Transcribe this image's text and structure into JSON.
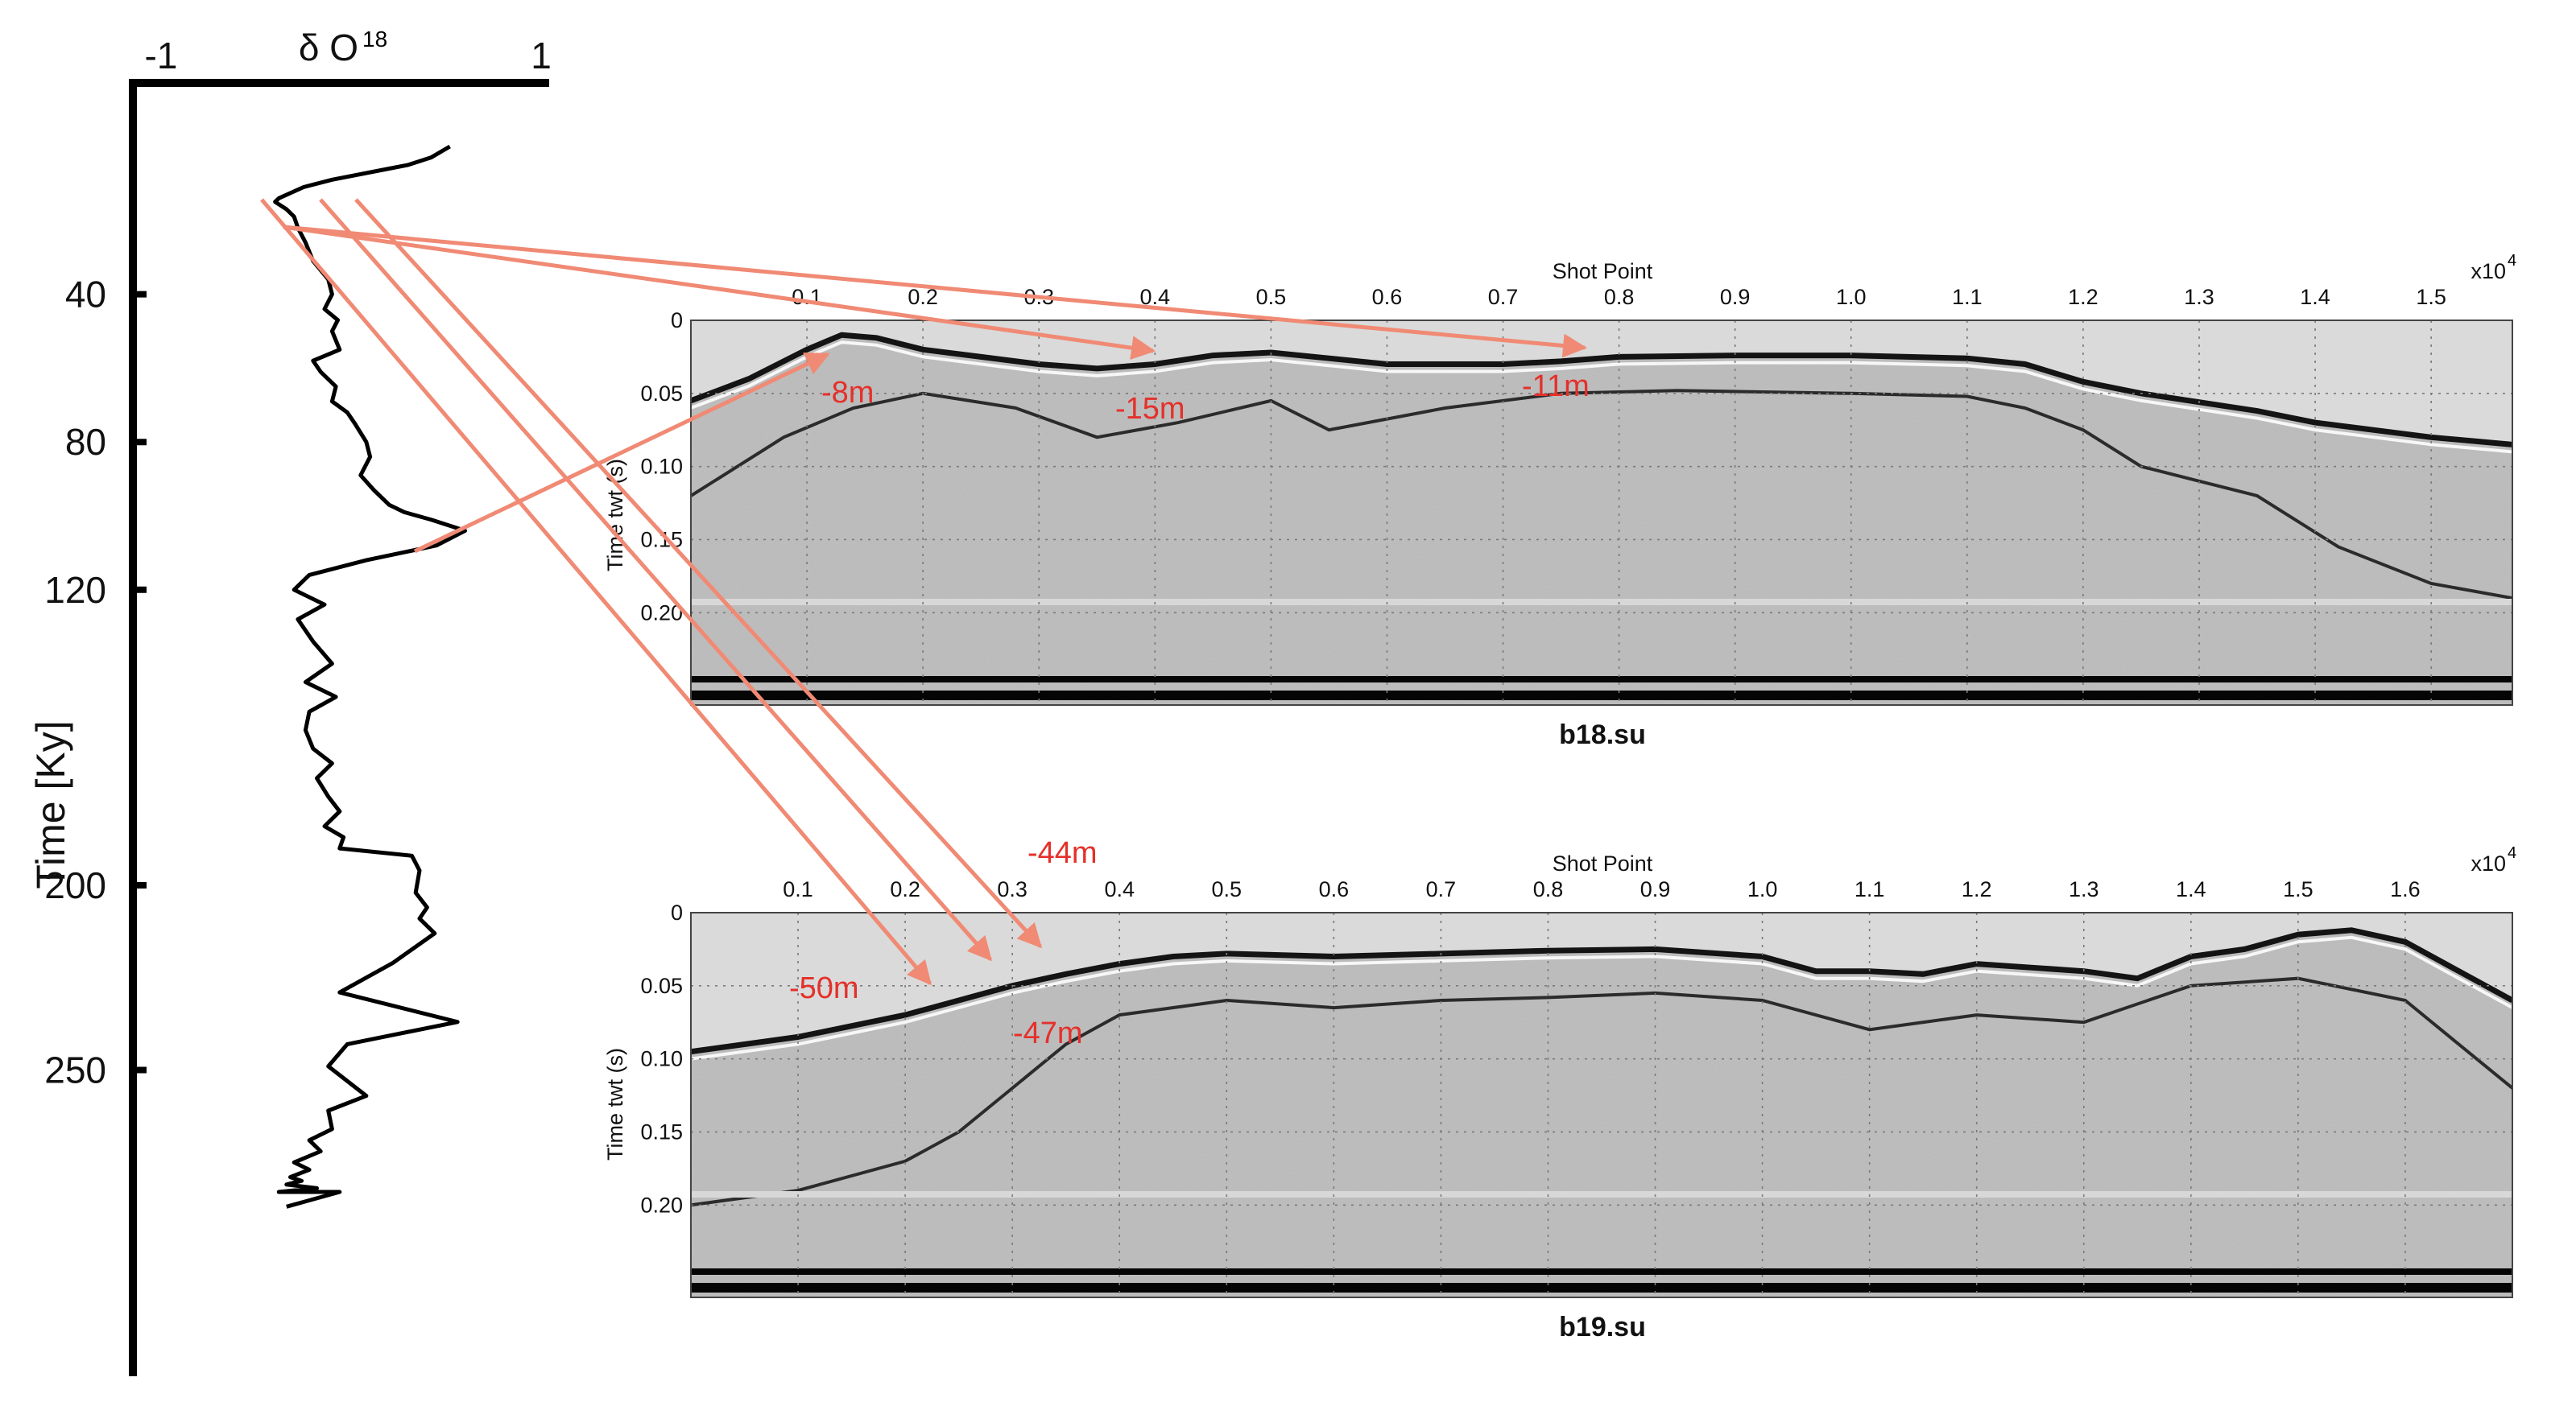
{
  "chart_data": [
    {
      "type": "line",
      "x_axis": {
        "label": "δ O",
        "label_sup": "18",
        "range": [
          -1,
          1
        ],
        "tick_labels": [
          "-1",
          "1"
        ]
      },
      "y_axis": {
        "label": "Time [Ky]",
        "range": [
          0,
          290
        ],
        "tick_values": [
          40,
          80,
          120,
          200,
          250
        ],
        "tick_labels": [
          "40",
          "80",
          "120",
          "200",
          "250"
        ],
        "inverted": true
      },
      "series": [
        {
          "color": "#000000",
          "x": [
            0.52,
            0.42,
            0.3,
            0.2,
            -0.1,
            -0.25,
            -0.38,
            -0.4,
            -0.34,
            -0.3,
            -0.28,
            -0.24,
            -0.2,
            -0.12,
            -0.1,
            -0.14,
            -0.07,
            -0.1,
            -0.06,
            -0.2,
            -0.16,
            -0.08,
            -0.1,
            -0.02,
            0.02,
            0.08,
            0.1,
            0.05,
            0.12,
            0.2,
            0.28,
            0.42,
            0.6,
            0.45,
            0.08,
            -0.22,
            -0.3,
            -0.14,
            -0.28,
            -0.2,
            -0.1,
            -0.24,
            -0.08,
            -0.22,
            -0.24,
            -0.2,
            -0.1,
            -0.18,
            -0.12,
            -0.06,
            -0.14,
            -0.04,
            -0.06,
            0.32,
            0.36,
            0.34,
            0.4,
            0.36,
            0.44,
            0.22,
            -0.06,
            0.56,
            -0.02,
            -0.12,
            0.08,
            -0.12,
            -0.1,
            -0.22,
            -0.16,
            -0.3,
            -0.22,
            -0.32,
            -0.26,
            -0.34,
            -0.18,
            -0.38,
            -0.06,
            -0.34
          ],
          "y": [
            0,
            3,
            5,
            6,
            9,
            11,
            14,
            15,
            17,
            19,
            22,
            26,
            31,
            36,
            40,
            44,
            47,
            50,
            55,
            58,
            61,
            65,
            69,
            72,
            75,
            80,
            84,
            89,
            93,
            97,
            99,
            101,
            104,
            108,
            112,
            116,
            120,
            124,
            128,
            134,
            140,
            145,
            149,
            153,
            158,
            163,
            167,
            171,
            176,
            180,
            184,
            187,
            190,
            192,
            196,
            202,
            206,
            209,
            213,
            221,
            229,
            237,
            243,
            249,
            257,
            261,
            266,
            269,
            272,
            275,
            277,
            279,
            280,
            281,
            282,
            283,
            283,
            287
          ]
        }
      ]
    },
    {
      "type": "heatmap",
      "title": "b18.su",
      "x_axis": {
        "label": "Shot Point",
        "multiplier": "x10",
        "multiplier_exp": "4",
        "range": [
          0,
          1.57
        ],
        "ticks": [
          "0.1",
          "0.2",
          "0.3",
          "0.4",
          "0.5",
          "0.6",
          "0.7",
          "0.8",
          "0.9",
          "1.0",
          "1.1",
          "1.2",
          "1.3",
          "1.4",
          "1.5"
        ]
      },
      "y_axis": {
        "label": "Time twt (s)",
        "range": [
          0,
          0.25
        ],
        "ticks": [
          "0",
          "0.05",
          "0.10",
          "0.15",
          "0.20"
        ],
        "inverted": true
      },
      "grid": true,
      "depth_annotations": [
        {
          "text": "-8m",
          "shot_point": 0.12
        },
        {
          "text": "-15m",
          "shot_point": 0.4
        },
        {
          "text": "-11m",
          "shot_point": 0.78
        }
      ],
      "seafloor": {
        "sp": [
          0,
          0.05,
          0.1,
          0.13,
          0.16,
          0.2,
          0.25,
          0.3,
          0.35,
          0.4,
          0.45,
          0.5,
          0.55,
          0.6,
          0.65,
          0.7,
          0.75,
          0.8,
          0.9,
          1.0,
          1.1,
          1.15,
          1.2,
          1.25,
          1.3,
          1.35,
          1.4,
          1.45,
          1.5,
          1.57
        ],
        "twt": [
          0.055,
          0.04,
          0.02,
          0.01,
          0.012,
          0.02,
          0.025,
          0.03,
          0.033,
          0.03,
          0.024,
          0.022,
          0.026,
          0.03,
          0.03,
          0.03,
          0.028,
          0.025,
          0.024,
          0.024,
          0.026,
          0.03,
          0.042,
          0.05,
          0.056,
          0.062,
          0.07,
          0.075,
          0.08,
          0.085
        ]
      },
      "reflector": {
        "sp": [
          0,
          0.08,
          0.14,
          0.2,
          0.28,
          0.35,
          0.42,
          0.5,
          0.55,
          0.65,
          0.75,
          0.85,
          1.0,
          1.1,
          1.15,
          1.2,
          1.25,
          1.3,
          1.35,
          1.42,
          1.5,
          1.57
        ],
        "twt": [
          0.12,
          0.08,
          0.06,
          0.05,
          0.06,
          0.08,
          0.07,
          0.055,
          0.075,
          0.06,
          0.05,
          0.048,
          0.05,
          0.052,
          0.06,
          0.075,
          0.1,
          0.11,
          0.12,
          0.155,
          0.18,
          0.19
        ]
      }
    },
    {
      "type": "heatmap",
      "title": "b19.su",
      "x_axis": {
        "label": "Shot Point",
        "multiplier": "x10",
        "multiplier_exp": "4",
        "range": [
          0,
          1.7
        ],
        "ticks": [
          "0.1",
          "0.2",
          "0.3",
          "0.4",
          "0.5",
          "0.6",
          "0.7",
          "0.8",
          "0.9",
          "1.0",
          "1.1",
          "1.2",
          "1.3",
          "1.4",
          "1.5",
          "1.6"
        ]
      },
      "y_axis": {
        "label": "Time twt (s)",
        "range": [
          0,
          0.25
        ],
        "ticks": [
          "0",
          "0.05",
          "0.10",
          "0.15",
          "0.20"
        ],
        "inverted": true
      },
      "grid": true,
      "depth_annotations": [
        {
          "text": "-44m",
          "shot_point": 0.32
        },
        {
          "text": "-50m",
          "shot_point": 0.13
        },
        {
          "text": "-47m",
          "shot_point": 0.3
        }
      ],
      "seafloor": {
        "sp": [
          0,
          0.1,
          0.2,
          0.25,
          0.3,
          0.35,
          0.4,
          0.45,
          0.5,
          0.6,
          0.7,
          0.8,
          0.9,
          1.0,
          1.05,
          1.1,
          1.15,
          1.2,
          1.3,
          1.35,
          1.4,
          1.45,
          1.5,
          1.55,
          1.6,
          1.65,
          1.7
        ],
        "twt": [
          0.095,
          0.085,
          0.07,
          0.06,
          0.05,
          0.042,
          0.035,
          0.03,
          0.028,
          0.03,
          0.028,
          0.026,
          0.025,
          0.03,
          0.04,
          0.04,
          0.042,
          0.035,
          0.04,
          0.045,
          0.03,
          0.025,
          0.015,
          0.012,
          0.02,
          0.04,
          0.06
        ]
      },
      "reflector": {
        "sp": [
          0,
          0.1,
          0.2,
          0.25,
          0.3,
          0.35,
          0.4,
          0.5,
          0.6,
          0.7,
          0.8,
          0.9,
          1.0,
          1.1,
          1.2,
          1.3,
          1.4,
          1.5,
          1.6,
          1.7
        ],
        "twt": [
          0.2,
          0.19,
          0.17,
          0.15,
          0.12,
          0.09,
          0.07,
          0.06,
          0.065,
          0.06,
          0.058,
          0.055,
          0.06,
          0.08,
          0.07,
          0.075,
          0.05,
          0.045,
          0.06,
          0.12
        ]
      }
    }
  ],
  "colors": {
    "arrow": "#f08a74",
    "depth_label": "#e5302a",
    "curve": "#000000",
    "seismic_base": "#bdbdbd"
  }
}
